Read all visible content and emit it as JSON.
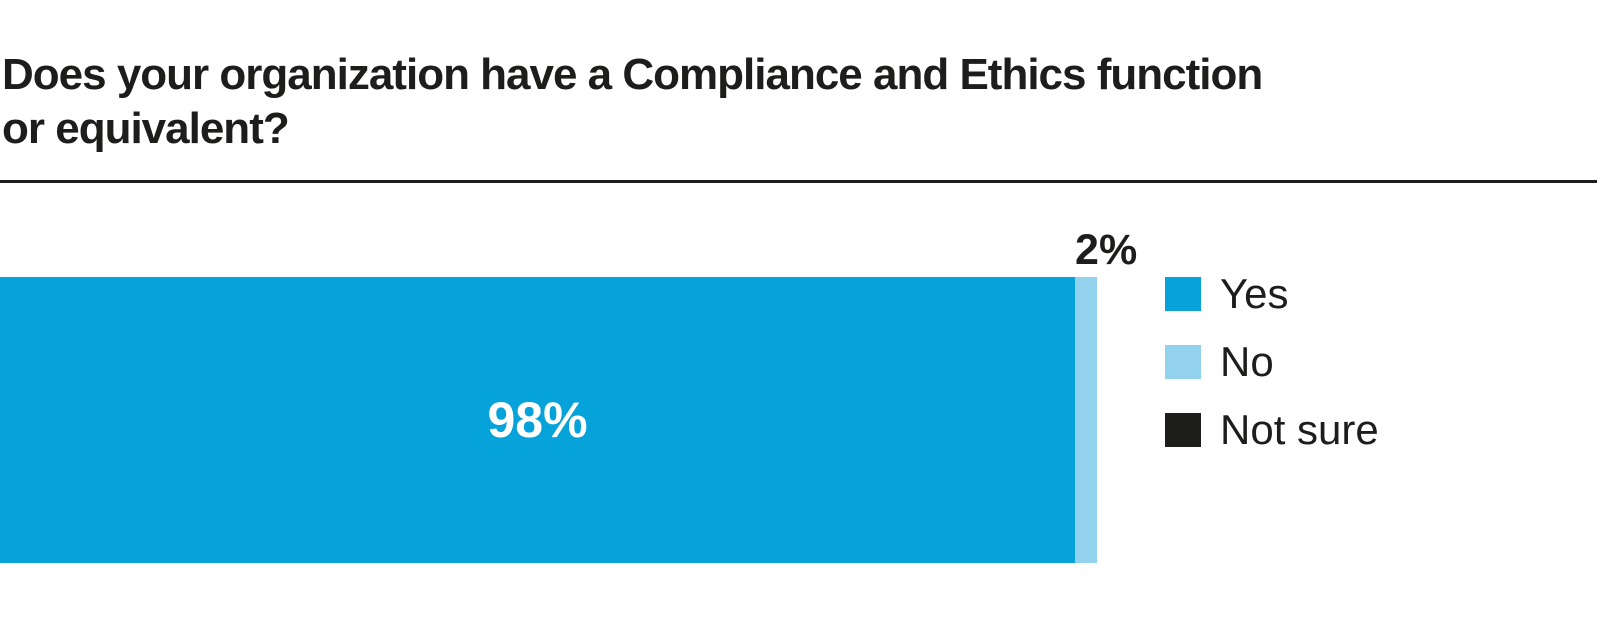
{
  "title": {
    "line1": "Does your organization have a Compliance and Ethics function",
    "line2": "or equivalent?"
  },
  "chart_data": {
    "type": "bar",
    "orientation": "horizontal",
    "stacked": true,
    "title": "Does your organization have a Compliance and Ethics function or equivalent?",
    "categories": [
      "Yes",
      "No",
      "Not sure"
    ],
    "values": [
      98,
      2,
      0
    ],
    "unit": "%",
    "xlim": [
      0,
      100
    ],
    "axes_visible": false,
    "grid": false,
    "legend_position": "right",
    "data_labels": {
      "yes": "98%",
      "no": "2%"
    },
    "legend": [
      {
        "label": "Yes",
        "color": "#06a2da"
      },
      {
        "label": "No",
        "color": "#92d2ec"
      },
      {
        "label": "Not sure",
        "color": "#1d1d1b"
      }
    ]
  },
  "colors": {
    "yes_segment": "#06a2da",
    "no_segment": "#92d2ec",
    "not_sure": "#1d1d1b",
    "text": "#1d1d1b",
    "label_inside_bar": "#ffffff",
    "background": "#ffffff"
  }
}
